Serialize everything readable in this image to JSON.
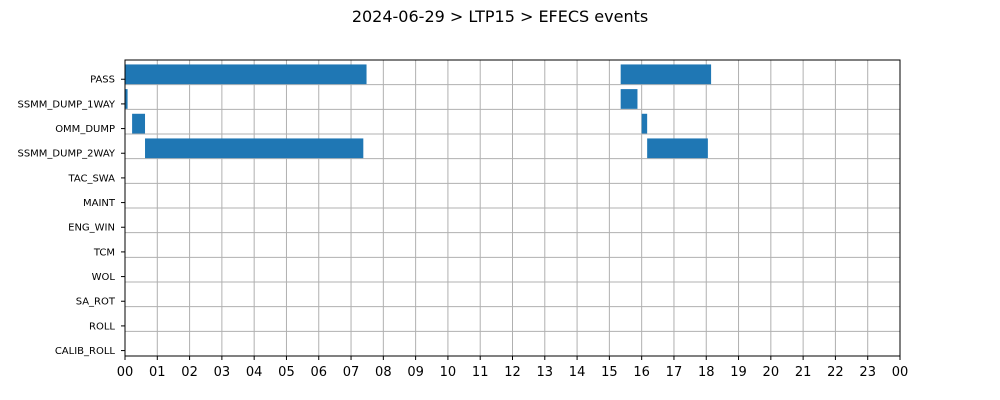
{
  "chart_data": {
    "type": "bar",
    "orientation": "horizontal-timeline",
    "title": "2024-06-29 > LTP15 > EFECS events",
    "xlabel": "",
    "ylabel": "",
    "xlim": [
      0,
      24
    ],
    "x_ticks": [
      "00",
      "01",
      "02",
      "03",
      "04",
      "05",
      "06",
      "07",
      "08",
      "09",
      "10",
      "11",
      "12",
      "13",
      "14",
      "15",
      "16",
      "17",
      "18",
      "19",
      "20",
      "21",
      "22",
      "23",
      "00"
    ],
    "categories": [
      "PASS",
      "SSMM_DUMP_1WAY",
      "OMM_DUMP",
      "SSMM_DUMP_2WAY",
      "TAC_SWA",
      "MAINT",
      "ENG_WIN",
      "TCM",
      "WOL",
      "SA_ROT",
      "ROLL",
      "CALIB_ROLL"
    ],
    "series": [
      {
        "color": "#1f77b4",
        "segments": [
          {
            "category": "PASS",
            "start": 0.0,
            "end": 7.48
          },
          {
            "category": "PASS",
            "start": 15.35,
            "end": 18.15
          },
          {
            "category": "SSMM_DUMP_1WAY",
            "start": 0.0,
            "end": 0.08
          },
          {
            "category": "SSMM_DUMP_1WAY",
            "start": 15.35,
            "end": 15.87
          },
          {
            "category": "OMM_DUMP",
            "start": 0.22,
            "end": 0.62
          },
          {
            "category": "OMM_DUMP",
            "start": 16.0,
            "end": 16.17
          },
          {
            "category": "SSMM_DUMP_2WAY",
            "start": 0.62,
            "end": 7.38
          },
          {
            "category": "SSMM_DUMP_2WAY",
            "start": 16.17,
            "end": 18.05
          }
        ]
      }
    ],
    "grid": true,
    "grid_color": "#b0b0b0",
    "legend": "none"
  }
}
